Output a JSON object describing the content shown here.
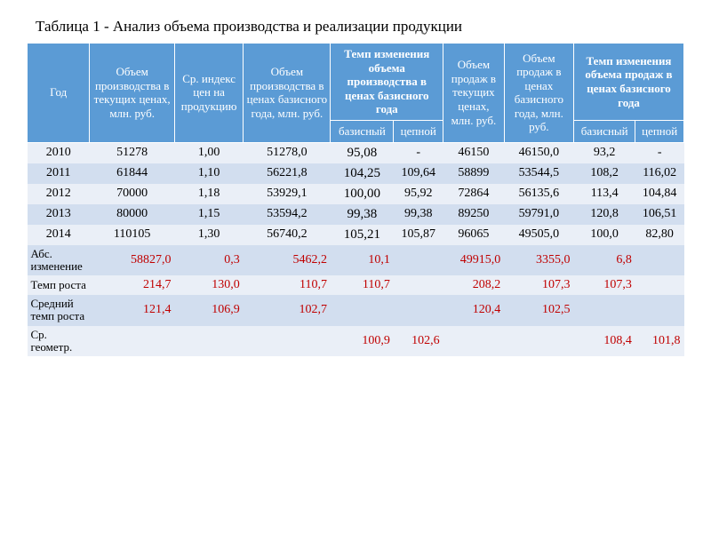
{
  "title": "Таблица 1 - Анализ объема производства и реализации продукции",
  "headers": {
    "year": "Год",
    "prod_cur": "Объем производства в текущих ценах, млн. руб.",
    "price_idx": "Ср. индекс цен на продукцию",
    "prod_base": "Объем производства в ценах базисного года, млн. руб.",
    "prod_rate_group": "Темп изменения объема производства в ценах базисного года",
    "sales_cur": "Объем продаж в текущих ценах, млн. руб.",
    "sales_base": "Объем продаж в ценах базисного года, млн. руб.",
    "sales_rate_group": "Темп изменения объема продаж в ценах базисного года",
    "basis": "базисный",
    "chain": "цепной"
  },
  "rows": [
    {
      "year": "2010",
      "c1": "51278",
      "c2": "1,00",
      "c3": "51278,0",
      "c4": "95,08",
      "c5": "-",
      "c6": "46150",
      "c7": "46150,0",
      "c8": "93,2",
      "c9": "-"
    },
    {
      "year": "2011",
      "c1": "61844",
      "c2": "1,10",
      "c3": "56221,8",
      "c4": "104,25",
      "c5": "109,64",
      "c6": "58899",
      "c7": "53544,5",
      "c8": "108,2",
      "c9": "116,02"
    },
    {
      "year": "2012",
      "c1": "70000",
      "c2": "1,18",
      "c3": "53929,1",
      "c4": "100,00",
      "c5": "95,92",
      "c6": "72864",
      "c7": "56135,6",
      "c8": "113,4",
      "c9": "104,84"
    },
    {
      "year": "2013",
      "c1": "80000",
      "c2": "1,15",
      "c3": "53594,2",
      "c4": "99,38",
      "c5": "99,38",
      "c6": "89250",
      "c7": "59791,0",
      "c8": "120,8",
      "c9": "106,51"
    },
    {
      "year": "2014",
      "c1": "110105",
      "c2": "1,30",
      "c3": "56740,2",
      "c4": "105,21",
      "c5": "105,87",
      "c6": "96065",
      "c7": "49505,0",
      "c8": "100,0",
      "c9": "82,80"
    }
  ],
  "summary": [
    {
      "label": "Абс. изменение",
      "c1": "58827,0",
      "c2": "0,3",
      "c3": "5462,2",
      "c4": "10,1",
      "c5": "",
      "c6": "49915,0",
      "c7": "3355,0",
      "c8": "6,8",
      "c9": ""
    },
    {
      "label": "Темп роста",
      "c1": "214,7",
      "c2": "130,0",
      "c3": "110,7",
      "c4": "110,7",
      "c5": "",
      "c6": "208,2",
      "c7": "107,3",
      "c8": "107,3",
      "c9": ""
    },
    {
      "label": "Средний темп роста",
      "c1": "121,4",
      "c2": "106,9",
      "c3": "102,7",
      "c4": "",
      "c5": "",
      "c6": "120,4",
      "c7": "102,5",
      "c8": "",
      "c9": ""
    },
    {
      "label": "Ср. геометр.",
      "c1": "",
      "c2": "",
      "c3": "",
      "c4": "100,9",
      "c5": "102,6",
      "c6": "",
      "c7": "",
      "c8": "108,4",
      "c9": "101,8"
    }
  ],
  "style": {
    "header_bg": "#5b9bd5",
    "header_fg": "#ffffff",
    "zebra_light": "#eaeff7",
    "zebra_dark": "#d2deef",
    "data_color": "#000000",
    "summary_color": "#c00000",
    "title_fontsize": 17,
    "header_fontsize": 13,
    "cell_fontsize": 14
  }
}
